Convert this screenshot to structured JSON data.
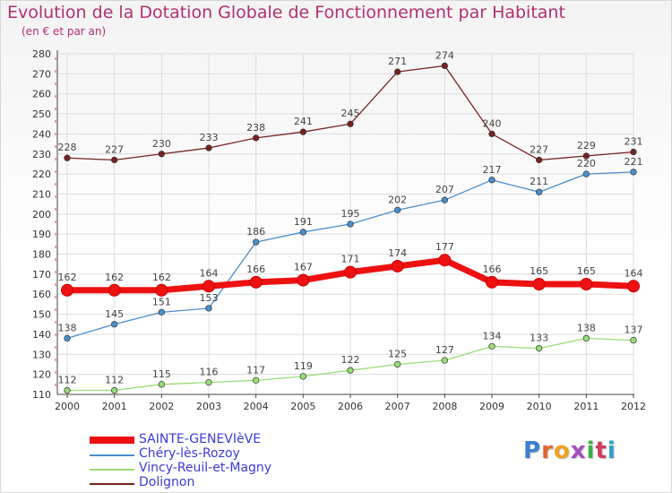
{
  "header": {
    "title": "Evolution de la Dotation Globale de Fonctionnement par Habitant",
    "subtitle": "(en € et par an)"
  },
  "logo": {
    "text": "Proxiti",
    "colors": [
      "#3a7fd5",
      "#e2662b",
      "#f0a020",
      "#a050c0",
      "#3fae49",
      "#d23b5e",
      "#2aa0c9"
    ]
  },
  "chart_data": {
    "type": "line",
    "x": [
      "2000",
      "2001",
      "2002",
      "2003",
      "2004",
      "2005",
      "2006",
      "2007",
      "2008",
      "2009",
      "2010",
      "2011",
      "2012"
    ],
    "ylim": [
      110,
      280
    ],
    "yticks": [
      110,
      120,
      130,
      140,
      150,
      160,
      170,
      180,
      190,
      200,
      210,
      220,
      230,
      240,
      250,
      260,
      270,
      280
    ],
    "grid": true,
    "legend_position": "bottom-left",
    "series": [
      {
        "name": "SAINTE-GENEVIèVE",
        "color": "#ee1111",
        "values": [
          162,
          162,
          162,
          164,
          166,
          167,
          171,
          174,
          177,
          166,
          165,
          165,
          164
        ]
      },
      {
        "name": "Chéry-lès-Rozoy",
        "color": "#4a8fcc",
        "values": [
          138,
          145,
          151,
          153,
          186,
          191,
          195,
          202,
          207,
          217,
          211,
          220,
          221
        ]
      },
      {
        "name": "Vincy-Reuil-et-Magny",
        "color": "#99dd77",
        "values": [
          112,
          112,
          115,
          116,
          117,
          119,
          122,
          125,
          127,
          134,
          133,
          138,
          137
        ]
      },
      {
        "name": "Dolignon",
        "color": "#772222",
        "values": [
          228,
          227,
          230,
          233,
          238,
          241,
          245,
          271,
          274,
          240,
          227,
          229,
          231
        ]
      }
    ]
  }
}
